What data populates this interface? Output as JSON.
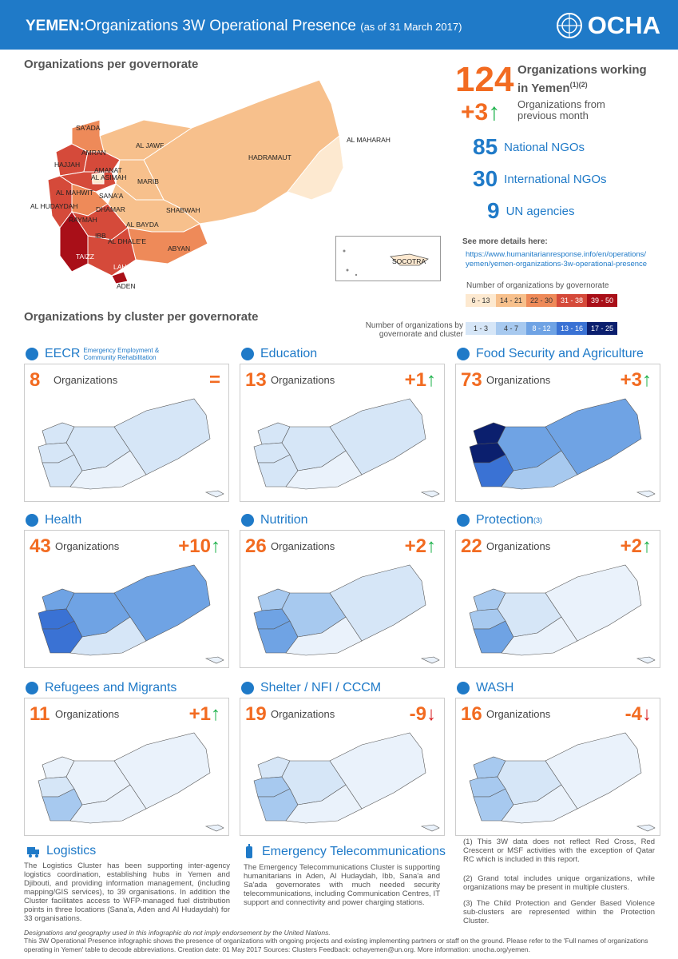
{
  "header": {
    "country": "YEMEN:",
    "title": "Organizations 3W Operational Presence",
    "date": "(as of 31 March 2017)",
    "logo": "OCHA"
  },
  "sections": {
    "per_gov": "Organizations per governorate",
    "by_cluster": "Organizations by cluster per governorate"
  },
  "summary": {
    "total": "124",
    "total_label": "Organizations working",
    "total_label2": "in Yemen",
    "total_sup": "(1)(2)",
    "change": "+3",
    "change_label": "Organizations from",
    "change_label2": "previous month",
    "national": "85",
    "national_label": "National NGOs",
    "international": "30",
    "international_label": "International NGOs",
    "un": "9",
    "un_label": "UN agencies"
  },
  "details": {
    "label": "See more details here:",
    "url1": "https://www.humanitarianresponse.info/en/operations/",
    "url2": "yemen/yemen-organizations-3w-operational-presence"
  },
  "legend_gov": {
    "title": "Number of organizations by governorate",
    "items": [
      "6 - 13",
      "14 - 21",
      "22 - 30",
      "31 - 38",
      "39 - 50"
    ],
    "colors": [
      "#fde9d0",
      "#f7c08c",
      "#ee8a59",
      "#d54a3a",
      "#a90f18"
    ]
  },
  "legend_cluster": {
    "title1": "Number of organizations by",
    "title2": "governorate and cluster",
    "items": [
      "1 - 3",
      "4 - 7",
      "8 - 12",
      "13 - 16",
      "17 - 25"
    ],
    "colors": [
      "#d6e6f7",
      "#a7c9ef",
      "#6fa3e4",
      "#3a72d4",
      "#0b1f6e"
    ]
  },
  "map_labels": [
    "SA'ADA",
    "AL JAWF",
    "AMRAN",
    "HAJJAH",
    "AMANAT",
    "AL ASIMAH",
    "MARIB",
    "HADRAMAUT",
    "AL MAHARAH",
    "AL MAHWIT",
    "SANA'A",
    "AL HUDAYDAH",
    "DHAMAR",
    "SHABWAH",
    "RAYMAH",
    "AL BAYDA",
    "IBB",
    "AL DHALE'E",
    "ABYAN",
    "TAIZZ",
    "LAHJ",
    "ADEN",
    "SOCOTRA"
  ],
  "clusters": [
    {
      "name": "EECR",
      "sub": "Emergency Employment & Community Rehabilitation",
      "count": "8",
      "change": "=",
      "dir": "none",
      "icon": "hammer-icon"
    },
    {
      "name": "Education",
      "count": "13",
      "change": "+1",
      "dir": "up",
      "icon": "book-icon"
    },
    {
      "name": "Food Security and Agriculture",
      "count": "73",
      "change": "+3",
      "dir": "up",
      "icon": "wheat-icon"
    },
    {
      "name": "Health",
      "count": "43",
      "change": "+10",
      "dir": "up",
      "icon": "caduceus-icon"
    },
    {
      "name": "Nutrition",
      "count": "26",
      "change": "+2",
      "dir": "up",
      "icon": "nutrition-icon"
    },
    {
      "name": "Protection",
      "sup": "(3)",
      "count": "22",
      "change": "+2",
      "dir": "up",
      "icon": "hands-icon"
    },
    {
      "name": "Refugees and Migrants",
      "count": "11",
      "change": "+1",
      "dir": "up",
      "icon": "people-icon"
    },
    {
      "name": "Shelter / NFI / CCCM",
      "count": "19",
      "change": "-9",
      "dir": "down",
      "icon": "shelter-icon"
    },
    {
      "name": "WASH",
      "count": "16",
      "change": "-4",
      "dir": "down",
      "icon": "tap-icon"
    }
  ],
  "org_word": "Organizations",
  "logistics": {
    "title": "Logistics",
    "text": "The Logistics Cluster has been supporting inter-agency logistics coordination, establishing hubs in Yemen and Djibouti, and providing information management, (including mapping/GIS services), to 39 organisations. In addition the Cluster facilitates access to WFP-managed fuel distribution points in three locations (Sana'a, Aden and Al Hudaydah) for 33 organisations."
  },
  "etc": {
    "title": "Emergency Telecommunications",
    "text": "The Emergency Telecommunications Cluster is supporting humanitarians in Aden, Al Hudaydah, Ibb, Sana'a and Sa'ada governorates with much needed security telecommunications, including Communication Centres, IT support and connectivity and power charging stations."
  },
  "notes": [
    "(1) This 3W data does not reflect Red Cross, Red Crescent or MSF activities with the exception of Qatar RC which is included in this report.",
    "(2) Grand total includes unique organizations, while organizations may be present in multiple clusters.",
    "(3) The Child Protection and Gender Based Violence sub-clusters are represented within the Protection Cluster."
  ],
  "footer": {
    "line1": "Designations and geography used in this infographic do not imply endorsement by the United Nations.",
    "line2": "This 3W Operational Presence infographic shows the presence of organizations with ongoing projects and existing implementing partners or staff on the ground. Please refer to the 'Full names of organizations operating in Yemen' table to decode abbreviations.",
    "line3": "Creation date: 01 May 2017 Sources: Clusters Feedback: ochayemen@un.org. More information: unocha.org/yemen."
  }
}
